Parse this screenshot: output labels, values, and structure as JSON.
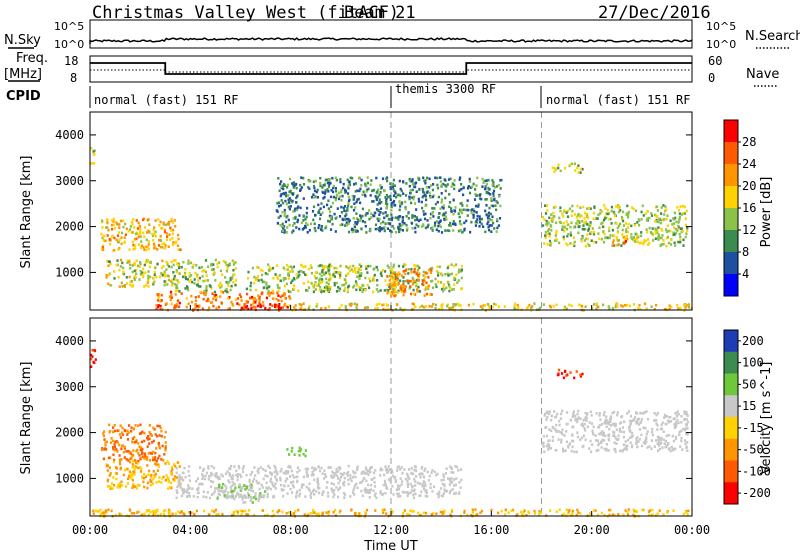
{
  "header": {
    "site": "Christmas Valley West (fitACF)",
    "beam": "Beam 21",
    "date": "27/Dec/2016"
  },
  "top_panels": {
    "nsky_label": "N.Sky",
    "nsky_ticks": [
      "10^5",
      "10^0"
    ],
    "nsearch_label": "N.Search",
    "nsearch_ticks": [
      "10^5",
      "10^0"
    ],
    "freq_label": "Freq.",
    "freq_unit": "[MHz]",
    "freq_ticks": [
      "18",
      "8"
    ],
    "nave_label": "Nave",
    "nave_ticks": [
      "60",
      "0"
    ],
    "cpid_label": "CPID",
    "cpid_segments": [
      {
        "label": "normal (fast) 151 RF",
        "start": 0,
        "end": 12
      },
      {
        "label": "themis 3300 RF",
        "start": 12,
        "end": 18
      },
      {
        "label": "normal (fast) 151 RF",
        "start": 18,
        "end": 24
      }
    ]
  },
  "chart_data": [
    {
      "type": "heatmap",
      "title": "",
      "xlabel": "Time UT",
      "ylabel": "Slant Range [km]",
      "x_range_hours": [
        0,
        24
      ],
      "ylim": [
        180,
        4500
      ],
      "y_ticks": [
        "4000",
        "3000",
        "2000",
        "1000"
      ],
      "x_ticks": [
        "00:00",
        "04:00",
        "08:00",
        "12:00",
        "16:00",
        "20:00",
        "00:00"
      ],
      "colorbar": {
        "label": "Power [dB]",
        "ticks": [
          "28",
          "24",
          "20",
          "16",
          "12",
          "8",
          "4"
        ],
        "colors": [
          "#ff0000",
          "#ff5a00",
          "#ff9600",
          "#ffd200",
          "#8bc34a",
          "#3c8c50",
          "#1e50a0",
          "#0000ff"
        ]
      },
      "regions": [
        {
          "t0": 0.0,
          "t1": 0.2,
          "r0": 3400,
          "r1": 3800,
          "level": 14
        },
        {
          "t0": 0.4,
          "t1": 3.6,
          "r0": 1500,
          "r1": 2200,
          "level": 18
        },
        {
          "t0": 0.6,
          "t1": 3.2,
          "r0": 700,
          "r1": 1300,
          "level": 14
        },
        {
          "t0": 2.6,
          "t1": 8.0,
          "r0": 200,
          "r1": 600,
          "level": 22
        },
        {
          "t0": 5.8,
          "t1": 7.6,
          "r0": 220,
          "r1": 360,
          "level": 29
        },
        {
          "t0": 3.2,
          "t1": 5.8,
          "r0": 600,
          "r1": 1300,
          "level": 12
        },
        {
          "t0": 6.2,
          "t1": 9.6,
          "r0": 600,
          "r1": 1200,
          "level": 12
        },
        {
          "t0": 9.2,
          "t1": 14.8,
          "r0": 600,
          "r1": 1200,
          "level": 12
        },
        {
          "t0": 11.8,
          "t1": 13.6,
          "r0": 500,
          "r1": 1100,
          "level": 21
        },
        {
          "t0": 7.4,
          "t1": 16.4,
          "r0": 1900,
          "r1": 3100,
          "level": 7
        },
        {
          "t0": 18.0,
          "t1": 23.8,
          "r0": 1600,
          "r1": 2500,
          "level": 13
        },
        {
          "t0": 20.8,
          "t1": 21.4,
          "r0": 1600,
          "r1": 1800,
          "level": 22
        },
        {
          "t0": 18.4,
          "t1": 19.6,
          "r0": 3200,
          "r1": 3400,
          "level": 13
        },
        {
          "t0": 8.0,
          "t1": 24.0,
          "r0": 200,
          "r1": 350,
          "level": 16
        }
      ]
    },
    {
      "type": "heatmap",
      "title": "",
      "xlabel": "Time UT",
      "ylabel": "Slant Range [km]",
      "x_range_hours": [
        0,
        24
      ],
      "ylim": [
        180,
        4500
      ],
      "y_ticks": [
        "4000",
        "3000",
        "2000",
        "1000"
      ],
      "x_ticks": [
        "00:00",
        "04:00",
        "08:00",
        "12:00",
        "16:00",
        "20:00",
        "00:00"
      ],
      "colorbar": {
        "label": "Velocity [m s^-1]",
        "ticks": [
          "200",
          "100",
          "50",
          "15",
          "-15",
          "-50",
          "-100",
          "-200"
        ],
        "colors": [
          "#1e3cb4",
          "#3c8c50",
          "#6ec83c",
          "#c8c8c8",
          "#ffd200",
          "#ff9600",
          "#ff5a00",
          "#ff0000"
        ]
      },
      "regions": [
        {
          "t0": 0.0,
          "t1": 0.2,
          "r0": 3300,
          "r1": 3900,
          "level": -200
        },
        {
          "t0": 0.4,
          "t1": 3.0,
          "r0": 1400,
          "r1": 2200,
          "level": -100
        },
        {
          "t0": 0.6,
          "t1": 3.6,
          "r0": 800,
          "r1": 1400,
          "level": -50
        },
        {
          "t0": 3.4,
          "t1": 14.8,
          "r0": 600,
          "r1": 1300,
          "level": 0
        },
        {
          "t0": 5.0,
          "t1": 7.0,
          "r0": 500,
          "r1": 900,
          "level": 30
        },
        {
          "t0": 7.8,
          "t1": 8.6,
          "r0": 1500,
          "r1": 1700,
          "level": 60
        },
        {
          "t0": 18.0,
          "t1": 23.8,
          "r0": 1600,
          "r1": 2500,
          "level": 0
        },
        {
          "t0": 18.6,
          "t1": 19.6,
          "r0": 3200,
          "r1": 3400,
          "level": -200
        },
        {
          "t0": 0.0,
          "t1": 24.0,
          "r0": 200,
          "r1": 350,
          "level": -50
        }
      ]
    }
  ],
  "axes_labels": {
    "slant_range": "Slant Range [km]",
    "time": "Time UT",
    "power_cb": "Power [dB]",
    "velocity_cb": "Velocity [m s^-1]"
  }
}
